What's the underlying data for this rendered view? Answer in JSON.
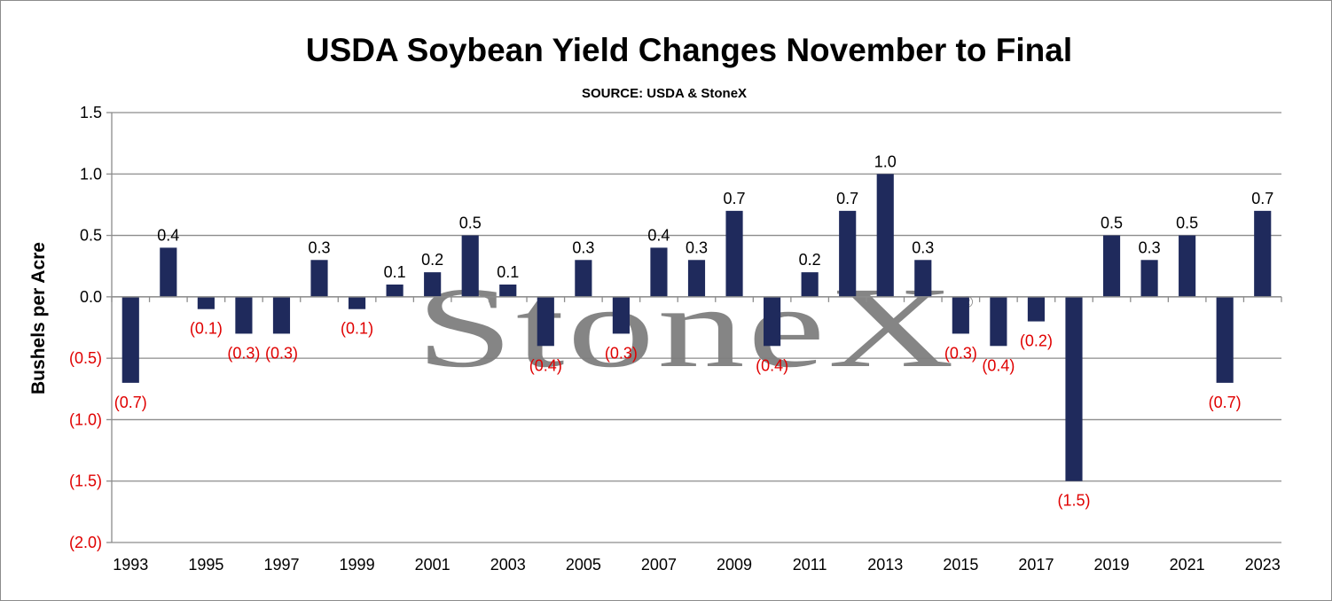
{
  "chart_data": {
    "type": "bar",
    "title": "USDA Soybean Yield Changes November to Final",
    "subtitle": "SOURCE: USDA & StoneX",
    "ylabel": "Bushels per Acre",
    "xlabel": "",
    "ylim": [
      -2.0,
      1.5
    ],
    "yticks": [
      1.5,
      1.0,
      0.5,
      0.0,
      -0.5,
      -1.0,
      -1.5,
      -2.0
    ],
    "ytick_labels": [
      "1.5",
      "1.0",
      "0.5",
      "0.0",
      "(0.5)",
      "(1.0)",
      "(1.5)",
      "(2.0)"
    ],
    "grid": true,
    "categories": [
      "1993",
      "1994",
      "1995",
      "1996",
      "1997",
      "1998",
      "1999",
      "2000",
      "2001",
      "2002",
      "2003",
      "2004",
      "2005",
      "2006",
      "2007",
      "2008",
      "2009",
      "2010",
      "2011",
      "2012",
      "2013",
      "2014",
      "2015",
      "2016",
      "2017",
      "2018",
      "2019",
      "2020",
      "2021",
      "2022",
      "2023"
    ],
    "xtick_labels": [
      "1993",
      "",
      "1995",
      "",
      "1997",
      "",
      "1999",
      "",
      "2001",
      "",
      "2003",
      "",
      "2005",
      "",
      "2007",
      "",
      "2009",
      "",
      "2011",
      "",
      "2013",
      "",
      "2015",
      "",
      "2017",
      "",
      "2019",
      "",
      "2021",
      "",
      "2023"
    ],
    "values": [
      -0.7,
      0.4,
      -0.1,
      -0.3,
      -0.3,
      0.3,
      -0.1,
      0.1,
      0.2,
      0.5,
      0.1,
      -0.4,
      0.3,
      -0.3,
      0.4,
      0.3,
      0.7,
      -0.4,
      0.2,
      0.7,
      1.0,
      0.3,
      -0.3,
      -0.4,
      -0.2,
      -1.5,
      0.5,
      0.3,
      0.5,
      -0.7,
      0.7
    ],
    "data_labels": [
      "(0.7)",
      "0.4",
      "(0.1)",
      "(0.3)",
      "(0.3)",
      "0.3",
      "(0.1)",
      "0.1",
      "0.2",
      "0.5",
      "0.1",
      "(0.4)",
      "0.3",
      "(0.3)",
      "0.4",
      "0.3",
      "0.7",
      "(0.4)",
      "0.2",
      "0.7",
      "1.0",
      "0.3",
      "(0.3)",
      "(0.4)",
      "(0.2)",
      "(1.5)",
      "0.5",
      "0.3",
      "0.5",
      "(0.7)",
      "0.7"
    ],
    "bar_color": "#1f2a5c",
    "negative_label_color": "#e00000",
    "positive_label_color": "#000000",
    "grid_color": "#8c8c8c"
  },
  "watermark": {
    "text": "StoneX",
    "registered": "®"
  }
}
